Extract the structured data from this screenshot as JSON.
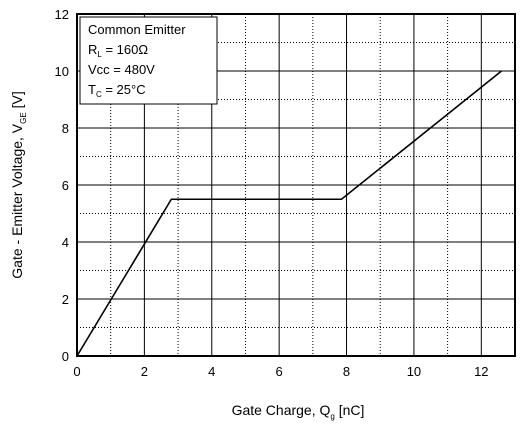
{
  "chart_data": {
    "type": "line",
    "title": "",
    "xlabel": {
      "main": "Gate Charge, Q",
      "sub": "g",
      "unit": " [nC]"
    },
    "ylabel": {
      "main": "Gate - Emitter Voltage, V",
      "sub": "GE",
      "unit": " [V]"
    },
    "xlim": [
      0,
      13
    ],
    "ylim": [
      0,
      12
    ],
    "xticks": [
      0,
      2,
      4,
      6,
      8,
      10,
      12
    ],
    "yticks": [
      0,
      2,
      4,
      6,
      8,
      10,
      12
    ],
    "grid": {
      "major": true,
      "minor": "dotted"
    },
    "series": [
      {
        "name": "",
        "color": "#000000",
        "x": [
          0,
          2.8,
          7.85,
          12.6
        ],
        "y": [
          0,
          5.5,
          5.5,
          10.0
        ]
      }
    ],
    "annotation": {
      "line1": "Common Emitter",
      "line2_main": "R",
      "line2_sub": "L",
      "line2_rest": " = 160Ω",
      "line3": "Vcc = 480V",
      "line4_main": "T",
      "line4_sub": "C",
      "line4_rest": " = 25°C"
    }
  }
}
